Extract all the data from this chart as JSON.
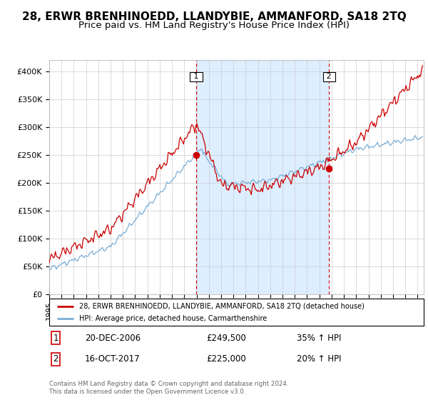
{
  "title": "28, ERWR BRENHINOEDD, LLANDYBIE, AMMANFORD, SA18 2TQ",
  "subtitle": "Price paid vs. HM Land Registry's House Price Index (HPI)",
  "yticks": [
    0,
    50000,
    100000,
    150000,
    200000,
    250000,
    300000,
    350000,
    400000
  ],
  "ytick_labels": [
    "£0",
    "£50K",
    "£100K",
    "£150K",
    "£200K",
    "£250K",
    "£300K",
    "£350K",
    "£400K"
  ],
  "ylim": [
    0,
    420000
  ],
  "xlim_start": 1995.0,
  "xlim_end": 2025.5,
  "sale1_date": 2006.97,
  "sale1_price": 249500,
  "sale2_date": 2017.79,
  "sale2_price": 225000,
  "red_line_color": "#cc0000",
  "blue_line_color": "#7aaed6",
  "shade_color": "#ddeeff",
  "grid_color": "#cccccc",
  "background_color": "#ffffff",
  "legend_label_red": "28, ERWR BRENHINOEDD, LLANDYBIE, AMMANFORD, SA18 2TQ (detached house)",
  "legend_label_blue": "HPI: Average price, detached house, Carmarthenshire",
  "annotation1": [
    "1",
    "20-DEC-2006",
    "£249,500",
    "35% ↑ HPI"
  ],
  "annotation2": [
    "2",
    "16-OCT-2017",
    "£225,000",
    "20% ↑ HPI"
  ],
  "footer": "Contains HM Land Registry data © Crown copyright and database right 2024.\nThis data is licensed under the Open Government Licence v3.0.",
  "title_fontsize": 11,
  "subtitle_fontsize": 9.5,
  "tick_fontsize": 8.0
}
